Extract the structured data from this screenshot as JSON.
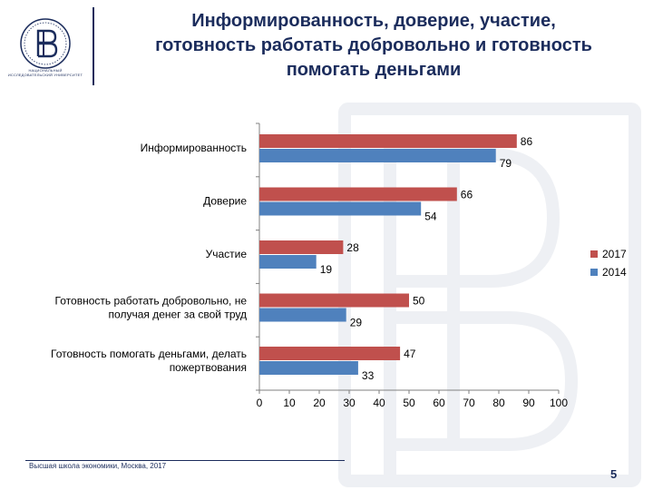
{
  "slide": {
    "title_lines": [
      "Информированность, доверие, участие,",
      "готовность работать добровольно и готовность",
      "помогать деньгами"
    ],
    "logo_caption": "НАЦИОНАЛЬНЫЙ ИССЛЕДОВАТЕЛЬСКИЙ УНИВЕРСИТЕТ",
    "footer": "Высшая школа экономики, Москва, 2017",
    "page_number": "5",
    "colors": {
      "brand": "#1b2c5c",
      "series_2017": "#c0504d",
      "series_2014": "#4f81bd"
    }
  },
  "chart_data": {
    "type": "bar",
    "orientation": "horizontal",
    "categories": [
      [
        "Информированность"
      ],
      [
        "Доверие"
      ],
      [
        "Участие"
      ],
      [
        "Готовность работать добровольно, не",
        "получая денег за свой труд"
      ],
      [
        "Готовность помогать деньгами, делать",
        "пожертвования"
      ]
    ],
    "series": [
      {
        "name": "2017",
        "values": [
          86,
          66,
          28,
          50,
          47
        ],
        "color": "#c0504d"
      },
      {
        "name": "2014",
        "values": [
          79,
          54,
          19,
          29,
          33
        ],
        "color": "#4f81bd"
      }
    ],
    "x_ticks": [
      "0",
      "10",
      "20",
      "30",
      "40",
      "50",
      "60",
      "70",
      "80",
      "90",
      "100"
    ],
    "xlim": [
      0,
      100
    ],
    "grid": false,
    "legend": "right",
    "data_labels": true
  }
}
